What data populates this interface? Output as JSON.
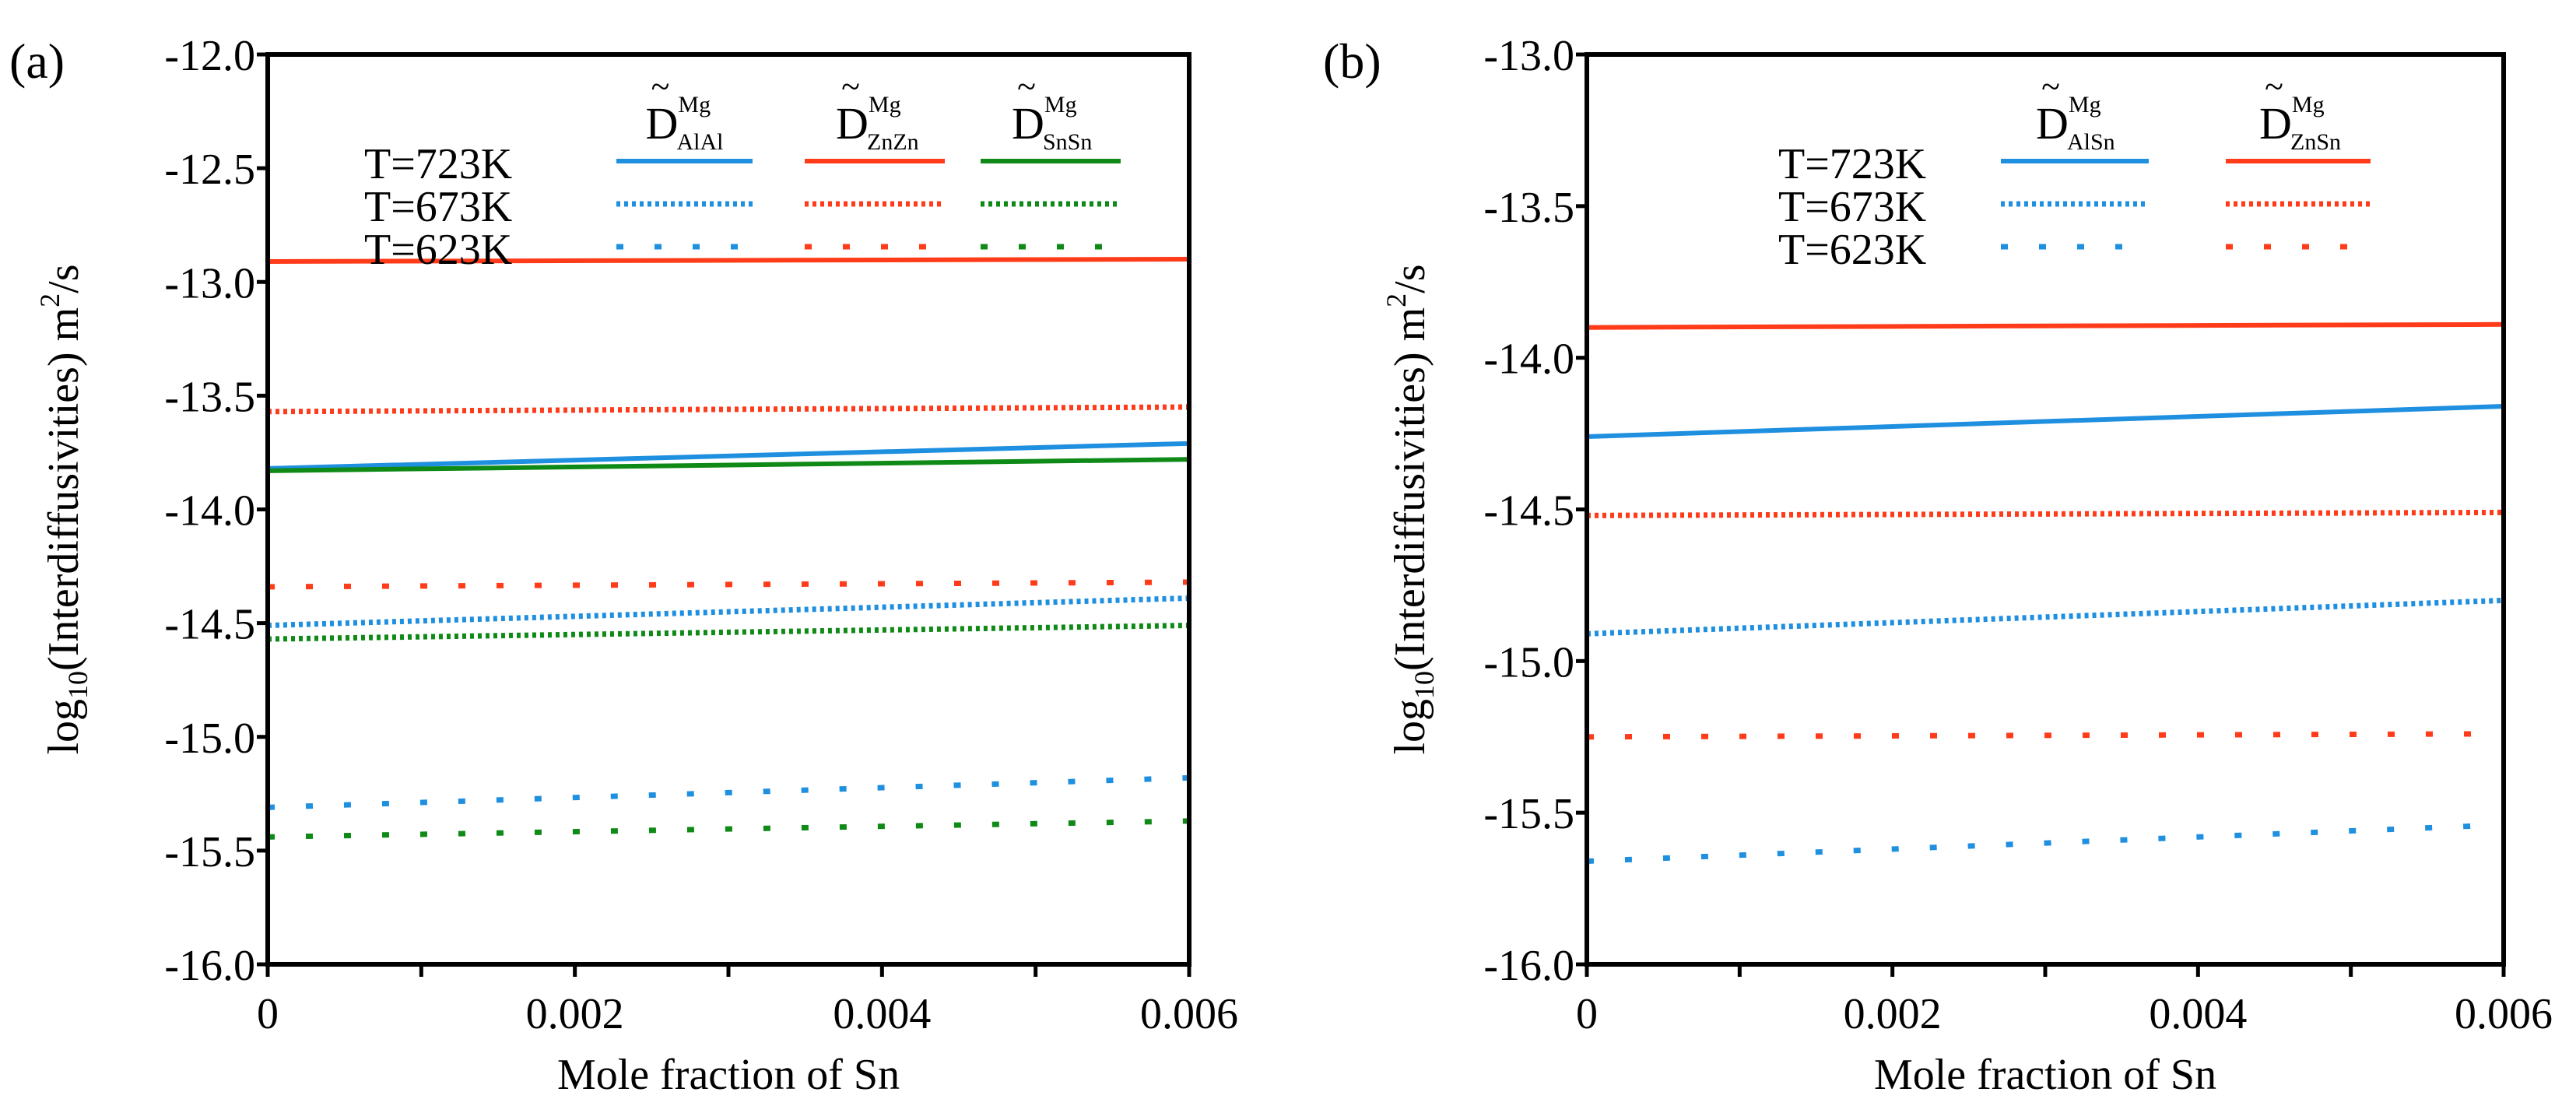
{
  "chart_data": [
    {
      "type": "line",
      "panel_label": "(a)",
      "xlabel": "Mole fraction of Sn",
      "ylabel": "log10(Interdiffusivities) m^2/s",
      "ylabel_parts": {
        "pre": "log",
        "sub": "10",
        "mid": "(Interdiffusivities) m",
        "sup": "2",
        "post": "/s"
      },
      "xlim": [
        0,
        0.006
      ],
      "ylim": [
        -16.0,
        -12.0
      ],
      "xticks": [
        "0",
        "0.002",
        "0.004",
        "0.006"
      ],
      "xtick_values": [
        0,
        0.002,
        0.004,
        0.006
      ],
      "yticks": [
        "-12.0",
        "-12.5",
        "-13.0",
        "-13.5",
        "-14.0",
        "-14.5",
        "-15.0",
        "-15.5",
        "-16.0"
      ],
      "ytick_values": [
        -12.0,
        -12.5,
        -13.0,
        -13.5,
        -14.0,
        -14.5,
        -15.0,
        -15.5,
        -16.0
      ],
      "legend": {
        "placement": "top",
        "temperatures": [
          "T=723K",
          "T=673K",
          "T=623K"
        ],
        "columns": [
          {
            "symbol": "D",
            "sup": "Mg",
            "sub": "AlAl",
            "color": "#1f8fe0"
          },
          {
            "symbol": "D",
            "sup": "Mg",
            "sub": "ZnZn",
            "color": "#ff3b1a"
          },
          {
            "symbol": "D",
            "sup": "Mg",
            "sub": "SnSn",
            "color": "#0f8a16"
          }
        ]
      },
      "x": [
        0,
        0.006
      ],
      "series": [
        {
          "name": "D_ZnZn T=723K",
          "color": "#ff3b1a",
          "style": "solid",
          "values": [
            -12.91,
            -12.9
          ]
        },
        {
          "name": "D_ZnZn T=673K",
          "color": "#ff3b1a",
          "style": "dot",
          "values": [
            -13.57,
            -13.55
          ]
        },
        {
          "name": "D_AlAl T=723K",
          "color": "#1f8fe0",
          "style": "solid",
          "values": [
            -13.82,
            -13.71
          ]
        },
        {
          "name": "D_SnSn T=723K",
          "color": "#0f8a16",
          "style": "solid",
          "values": [
            -13.83,
            -13.78
          ]
        },
        {
          "name": "D_ZnZn T=623K",
          "color": "#ff3b1a",
          "style": "sparse",
          "values": [
            -14.34,
            -14.32
          ]
        },
        {
          "name": "D_AlAl T=673K",
          "color": "#1f8fe0",
          "style": "dot",
          "values": [
            -14.51,
            -14.39
          ]
        },
        {
          "name": "D_SnSn T=673K",
          "color": "#0f8a16",
          "style": "dot",
          "values": [
            -14.57,
            -14.51
          ]
        },
        {
          "name": "D_AlAl T=623K",
          "color": "#1f8fe0",
          "style": "sparse",
          "values": [
            -15.31,
            -15.18
          ]
        },
        {
          "name": "D_SnSn T=623K",
          "color": "#0f8a16",
          "style": "sparse",
          "values": [
            -15.44,
            -15.37
          ]
        }
      ]
    },
    {
      "type": "line",
      "panel_label": "(b)",
      "xlabel": "Mole fraction of Sn",
      "ylabel": "log10(Interdiffusivities) m^2/s",
      "ylabel_parts": {
        "pre": "log",
        "sub": "10",
        "mid": "(Interdiffusivities) m",
        "sup": "2",
        "post": "/s"
      },
      "xlim": [
        0,
        0.006
      ],
      "ylim": [
        -16.0,
        -13.0
      ],
      "xticks": [
        "0",
        "0.002",
        "0.004",
        "0.006"
      ],
      "xtick_values": [
        0,
        0.002,
        0.004,
        0.006
      ],
      "yticks": [
        "-13.0",
        "-13.5",
        "-14.0",
        "-14.5",
        "-15.0",
        "-15.5",
        "-16.0"
      ],
      "ytick_values": [
        -13.0,
        -13.5,
        -14.0,
        -14.5,
        -15.0,
        -15.5,
        -16.0
      ],
      "legend": {
        "placement": "top",
        "temperatures": [
          "T=723K",
          "T=673K",
          "T=623K"
        ],
        "columns": [
          {
            "symbol": "D",
            "sup": "Mg",
            "sub": "AlSn",
            "color": "#1f8fe0"
          },
          {
            "symbol": "D",
            "sup": "Mg",
            "sub": "ZnSn",
            "color": "#ff3b1a"
          }
        ]
      },
      "x": [
        0,
        0.006
      ],
      "series": [
        {
          "name": "D_ZnSn T=723K",
          "color": "#ff3b1a",
          "style": "solid",
          "values": [
            -13.9,
            -13.89
          ]
        },
        {
          "name": "D_AlSn T=723K",
          "color": "#1f8fe0",
          "style": "solid",
          "values": [
            -14.26,
            -14.16
          ]
        },
        {
          "name": "D_ZnSn T=673K",
          "color": "#ff3b1a",
          "style": "dot",
          "values": [
            -14.52,
            -14.51
          ]
        },
        {
          "name": "D_AlSn T=673K",
          "color": "#1f8fe0",
          "style": "dot",
          "values": [
            -14.91,
            -14.8
          ]
        },
        {
          "name": "D_ZnSn T=623K",
          "color": "#ff3b1a",
          "style": "sparse",
          "values": [
            -15.25,
            -15.24
          ]
        },
        {
          "name": "D_AlSn T=623K",
          "color": "#1f8fe0",
          "style": "sparse",
          "values": [
            -15.66,
            -15.54
          ]
        }
      ]
    }
  ]
}
